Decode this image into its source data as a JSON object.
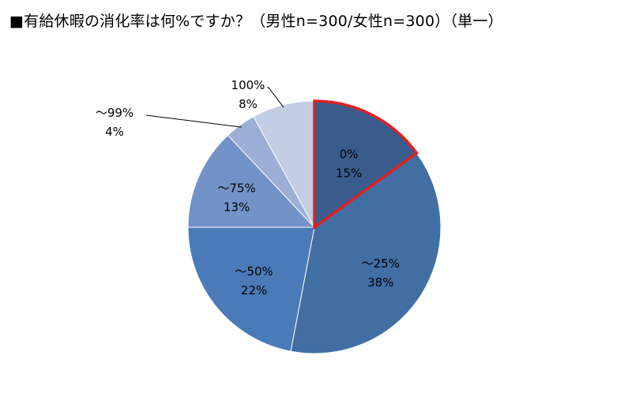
{
  "chart_data": {
    "type": "pie",
    "title": "■有給休暇の消化率は何%ですか？（男性n=300/女性n=300）（単一）",
    "categories": [
      "0%",
      "～25%",
      "～50%",
      "～75%",
      "～99%",
      "100%"
    ],
    "values": [
      15,
      38,
      22,
      13,
      4,
      8
    ],
    "value_labels": [
      "15%",
      "38%",
      "22%",
      "13%",
      "4%",
      "8%"
    ],
    "colors": [
      "#3a5c8c",
      "#416fa4",
      "#4a7ab8",
      "#7393c8",
      "#9aaed6",
      "#c3cde3"
    ],
    "highlight_index": 0,
    "highlight_color": "#e01f24",
    "legend": "none"
  }
}
